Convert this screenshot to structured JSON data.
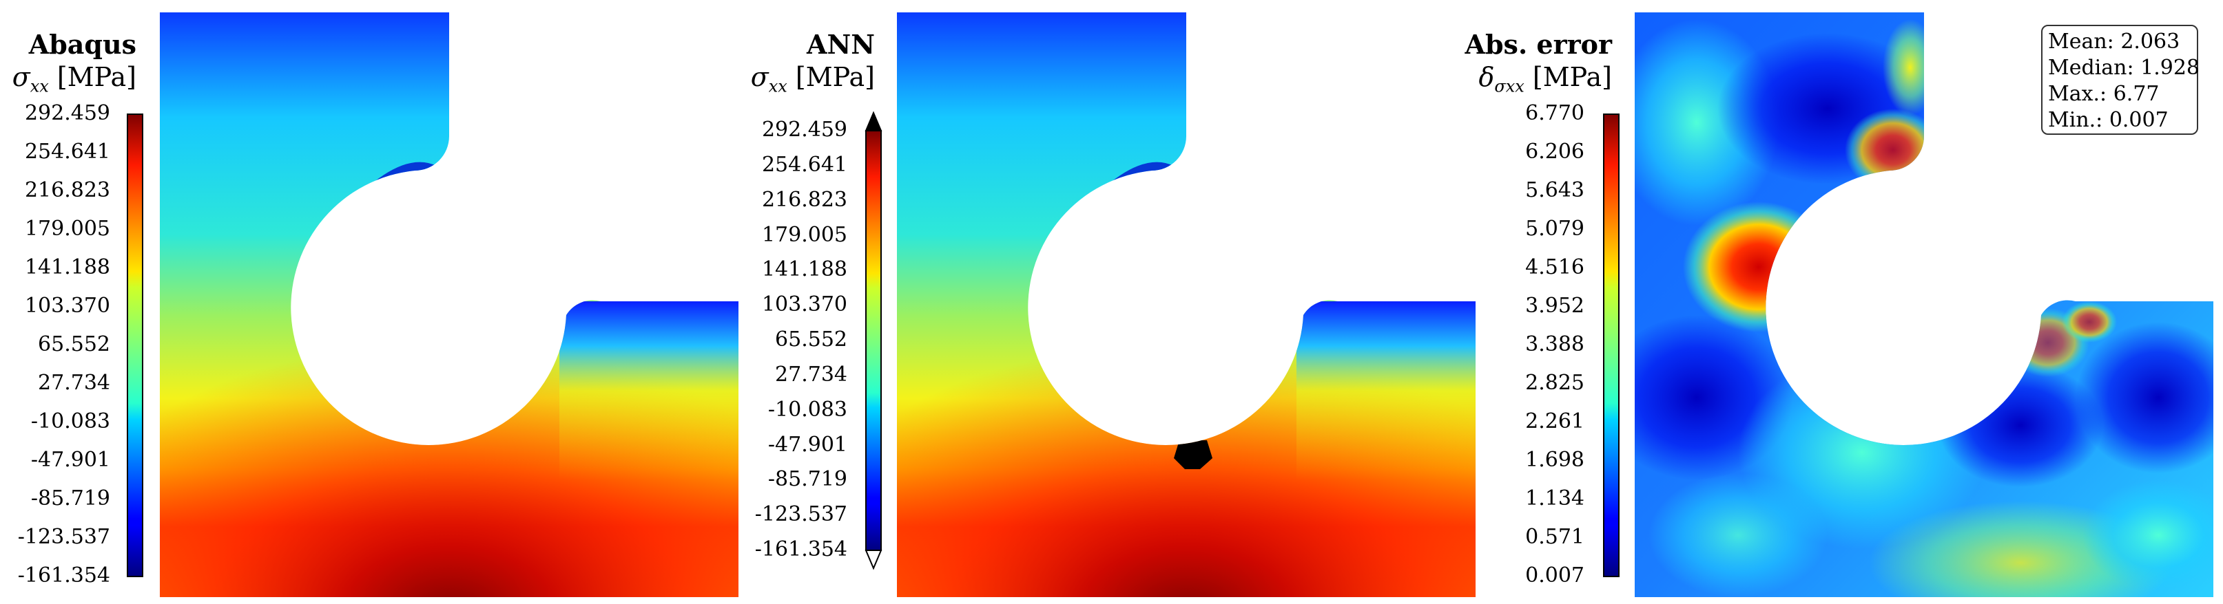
{
  "chart_data": [
    {
      "type": "heatmap",
      "title": "Abaqus",
      "quantity": "σ",
      "quantity_sub": "xx",
      "unit": "[MPa]",
      "colormap": "jet",
      "colorbar_ticks": [
        "292.459",
        "254.641",
        "216.823",
        "179.005",
        "141.188",
        "103.370",
        "65.552",
        "27.734",
        "-10.083",
        "-47.901",
        "-85.719",
        "-123.537",
        "-161.354"
      ],
      "range": [
        -161.354,
        292.459
      ]
    },
    {
      "type": "heatmap",
      "title": "ANN",
      "quantity": "σ",
      "quantity_sub": "xx",
      "unit": "[MPa]",
      "colormap": "jet",
      "colorbar_extends": "both",
      "colorbar_ticks": [
        "292.459",
        "254.641",
        "216.823",
        "179.005",
        "141.188",
        "103.370",
        "65.552",
        "27.734",
        "-10.083",
        "-47.901",
        "-85.719",
        "-123.537",
        "-161.354"
      ],
      "range": [
        -161.354,
        292.459
      ]
    },
    {
      "type": "heatmap",
      "title": "Abs. error",
      "quantity": "δ",
      "quantity_sub": "σxx",
      "unit": "[MPa]",
      "colormap": "jet",
      "colorbar_ticks": [
        "6.770",
        "6.206",
        "5.643",
        "5.079",
        "4.516",
        "3.952",
        "3.388",
        "2.825",
        "2.261",
        "1.698",
        "1.134",
        "0.571",
        "0.007"
      ],
      "range": [
        0.007,
        6.77
      ],
      "stats": {
        "mean": "Mean: 2.063",
        "median": "Median: 1.928",
        "max": "Max.: 6.77",
        "min": "Min.: 0.007"
      }
    }
  ]
}
